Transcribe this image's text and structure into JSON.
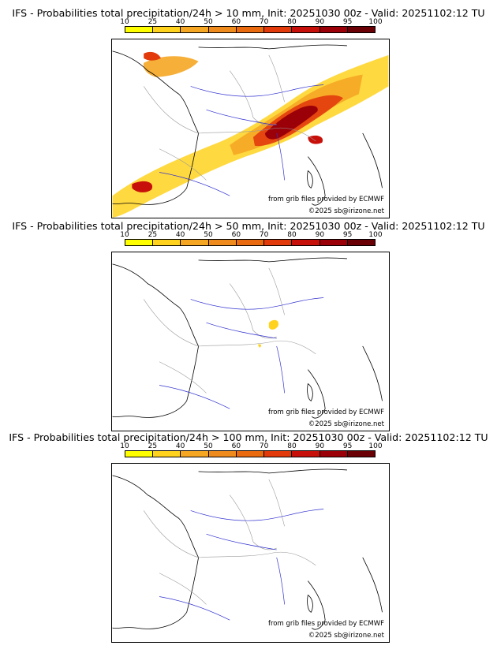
{
  "panels": [
    {
      "title": "IFS - Probabilities total precipitation/24h > 10 mm, Init: 20251030 00z - Valid: 20251102:12 TU"
    },
    {
      "title": "IFS - Probabilities total precipitation/24h > 50 mm, Init: 20251030 00z - Valid: 20251102:12 TU"
    },
    {
      "title": "IFS - Probabilities total precipitation/24h > 100 mm, Init: 20251030 00z - Valid: 20251102:12 TU"
    }
  ],
  "legend": {
    "ticks": [
      "10",
      "25",
      "40",
      "50",
      "60",
      "70",
      "80",
      "90",
      "95",
      "100"
    ],
    "colors": [
      "#ffff00",
      "#ffd21e",
      "#f5a623",
      "#ef8a1c",
      "#ea6a10",
      "#e33a0c",
      "#c8100a",
      "#9b0008",
      "#6a0006"
    ]
  },
  "credits": {
    "source": "from grib files provided by ECMWF",
    "copyright": "©2025 sb@irizone.net"
  },
  "colors": {
    "coast": "#000000",
    "borders": "#9a9a9a",
    "rivers": "#3030d0"
  }
}
